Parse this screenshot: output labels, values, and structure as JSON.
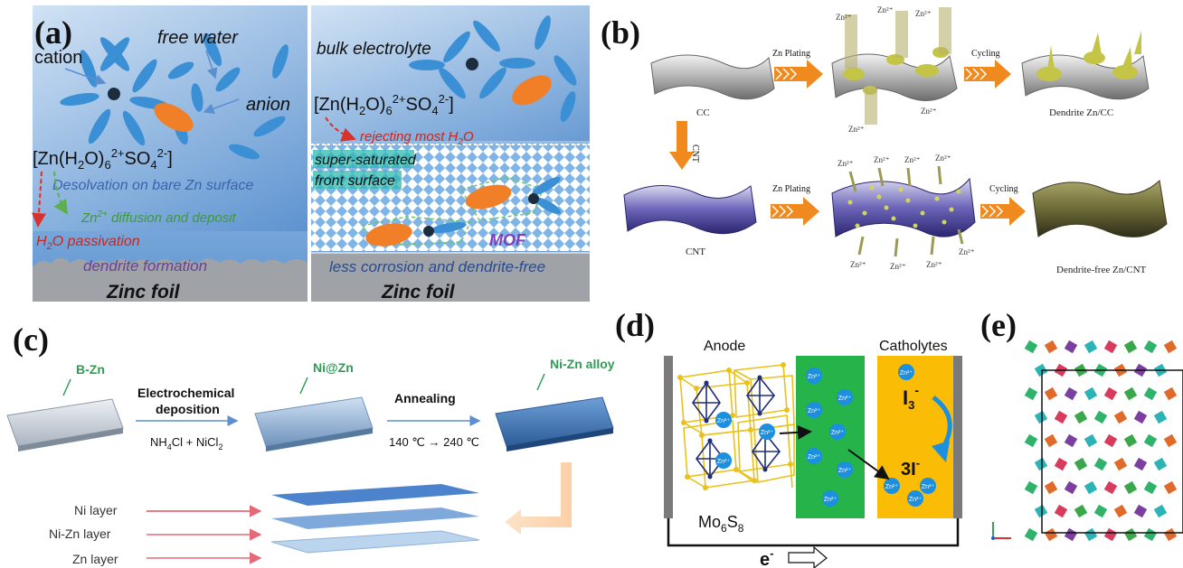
{
  "panel_a": {
    "letter": "(a)",
    "left": {
      "cation": "cation",
      "free_water": "free water",
      "anion": "anion",
      "complex": {
        "pre": "[Zn(H",
        "s1": "2",
        "mid": "O)",
        "s2": "6",
        "sup1": "2+",
        "so": "SO",
        "s3": "4",
        "sup2": "2-",
        "post": "]"
      },
      "desolvation": "Desolvation on bare Zn surface",
      "diffusion": {
        "sup": "2+",
        "rest": " diffusion and deposit",
        "pre": "Zn"
      },
      "passivation": {
        "pre": "H",
        "sub": "2",
        "rest": "O passivation"
      },
      "dendrite": "dendrite formation",
      "foil": "Zinc foil"
    },
    "right": {
      "bulk": "bulk electrolyte",
      "rejecting": {
        "pre": "rejecting most H",
        "sub": "2",
        "rest": "O"
      },
      "super1": "super-saturated",
      "super2": "front surface",
      "mof": "MOF",
      "less": "less corrosion and dendrite-free",
      "foil": "Zinc foil"
    },
    "colors": {
      "bg_top": "#b9d3ee",
      "bg_bottom": "#5e97d4",
      "ellipse_blue": "#3b8fd4",
      "ellipse_orange": "#f07f28",
      "arrow_red": "#d9312b",
      "arrow_green": "#5bb04b"
    }
  },
  "panel_b": {
    "letter": "(b)",
    "cc": "CC",
    "cnt": "CNT",
    "zn_plating_top": "Zn Plating",
    "zn_plating_bottom": "Zn Plating",
    "cycling_top": "Cycling",
    "cycling_bottom": "Cycling",
    "cnt_arrow": "CNT",
    "dendrite_zncc": "Dendrite Zn/CC",
    "dendrite_free": "Dendrite-free Zn/CNT",
    "zn_ion": "Zn²⁺"
  },
  "panel_c": {
    "letter": "(c)",
    "b_zn": "B-Zn",
    "ni_zn": "Ni@Zn",
    "ni_zn_alloy": "Ni-Zn alloy",
    "electrochem1": "Electrochemical",
    "electrochem2": "deposition",
    "annealing": "Annealing",
    "reagents": {
      "a": "NH",
      "b": "4",
      "c": "Cl + NiCl",
      "d": "2"
    },
    "temps": "140 ℃ → 240 ℃",
    "ni_layer": "Ni layer",
    "ni_zn_layer": "Ni-Zn layer",
    "zn_layer": "Zn layer"
  },
  "panel_d": {
    "letter": "(d)",
    "anode": "Anode",
    "catholytes": "Catholytes",
    "mo6s8": {
      "a": "Mo",
      "b": "6",
      "c": "S",
      "d": "8"
    },
    "i3": {
      "a": "I",
      "b": "3",
      "c": "-"
    },
    "three_i": {
      "a": "3I",
      "b": "-"
    },
    "electron": {
      "a": "e",
      "b": "-"
    },
    "zn_ion_label": "Zn²⁺"
  },
  "panel_e": {
    "letter": "(e)"
  }
}
